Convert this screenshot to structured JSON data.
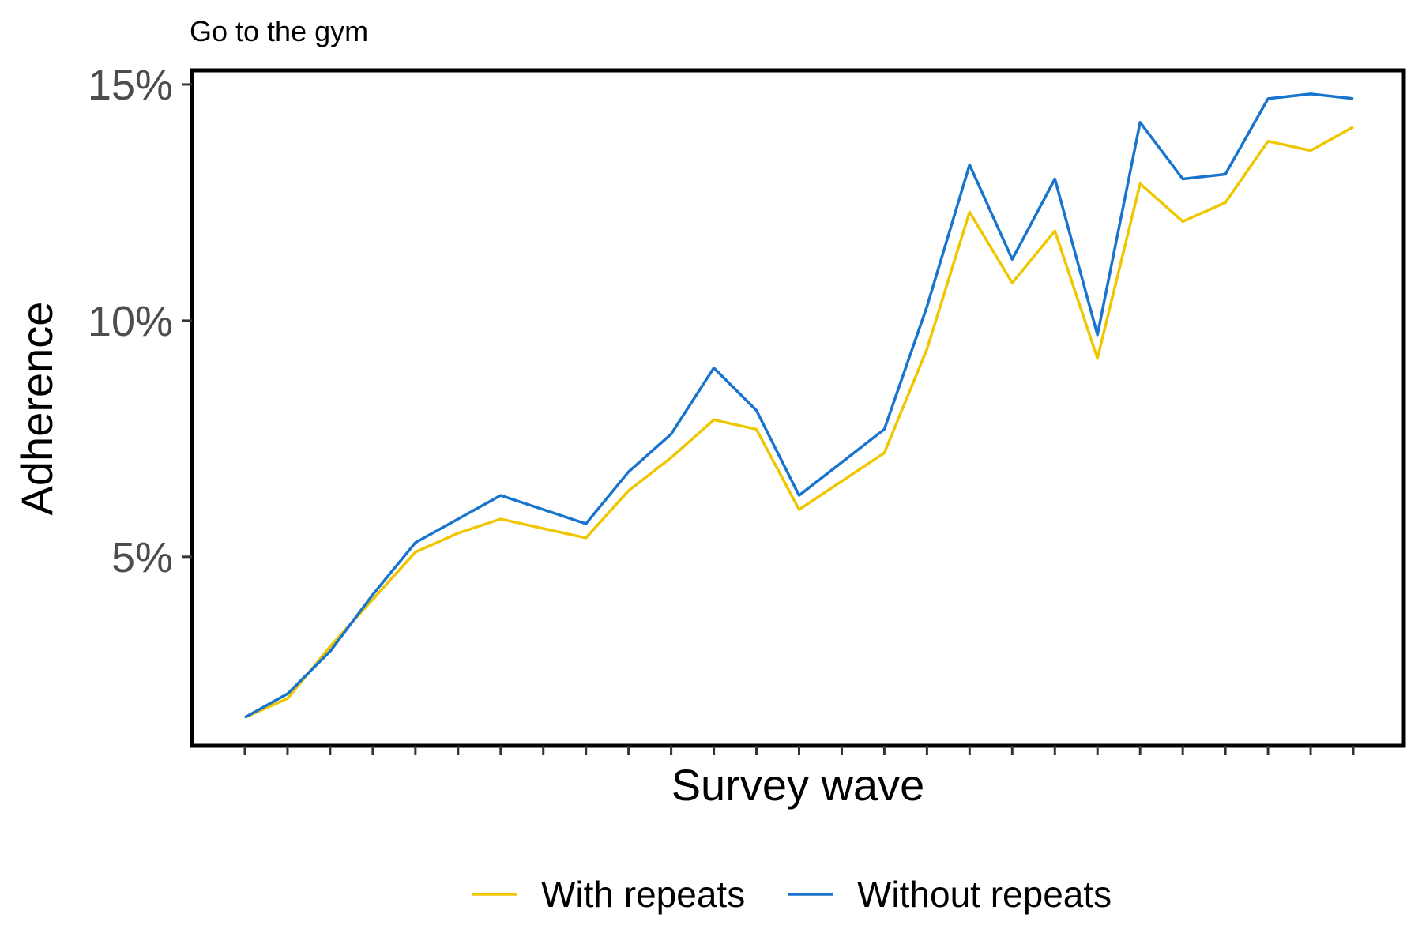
{
  "chart_data": {
    "type": "line",
    "title": "Go to the gym",
    "xlabel": "Survey wave",
    "ylabel": "Adherence",
    "x": [
      1,
      2,
      3,
      4,
      5,
      6,
      7,
      8,
      9,
      10,
      11,
      12,
      13,
      14,
      15,
      16,
      17,
      18,
      19,
      20,
      21,
      22,
      23,
      24,
      25,
      26,
      27
    ],
    "x_tick_labels_shown": false,
    "ylim": [
      1.0,
      15.3
    ],
    "y_ticks": [
      5,
      10,
      15
    ],
    "y_tick_labels": [
      "5%",
      "10%",
      "15%"
    ],
    "grid": false,
    "legend_position": "bottom",
    "series": [
      {
        "name": "With repeats",
        "color": "#EFC700",
        "values": [
          1.6,
          2.0,
          3.1,
          4.1,
          5.1,
          5.5,
          5.8,
          5.6,
          5.4,
          6.4,
          7.1,
          7.9,
          7.7,
          6.0,
          6.6,
          7.2,
          9.4,
          12.3,
          10.8,
          11.9,
          9.2,
          12.9,
          12.1,
          12.5,
          13.8,
          13.6,
          14.1
        ]
      },
      {
        "name": "Without repeats",
        "color": "#1874CD",
        "values": [
          1.6,
          2.1,
          3.0,
          4.2,
          5.3,
          5.8,
          6.3,
          6.0,
          5.7,
          6.8,
          7.6,
          9.0,
          8.1,
          6.3,
          7.0,
          7.7,
          10.3,
          13.3,
          11.3,
          13.0,
          9.7,
          14.2,
          13.0,
          13.1,
          14.7,
          14.8,
          14.7
        ]
      }
    ]
  }
}
